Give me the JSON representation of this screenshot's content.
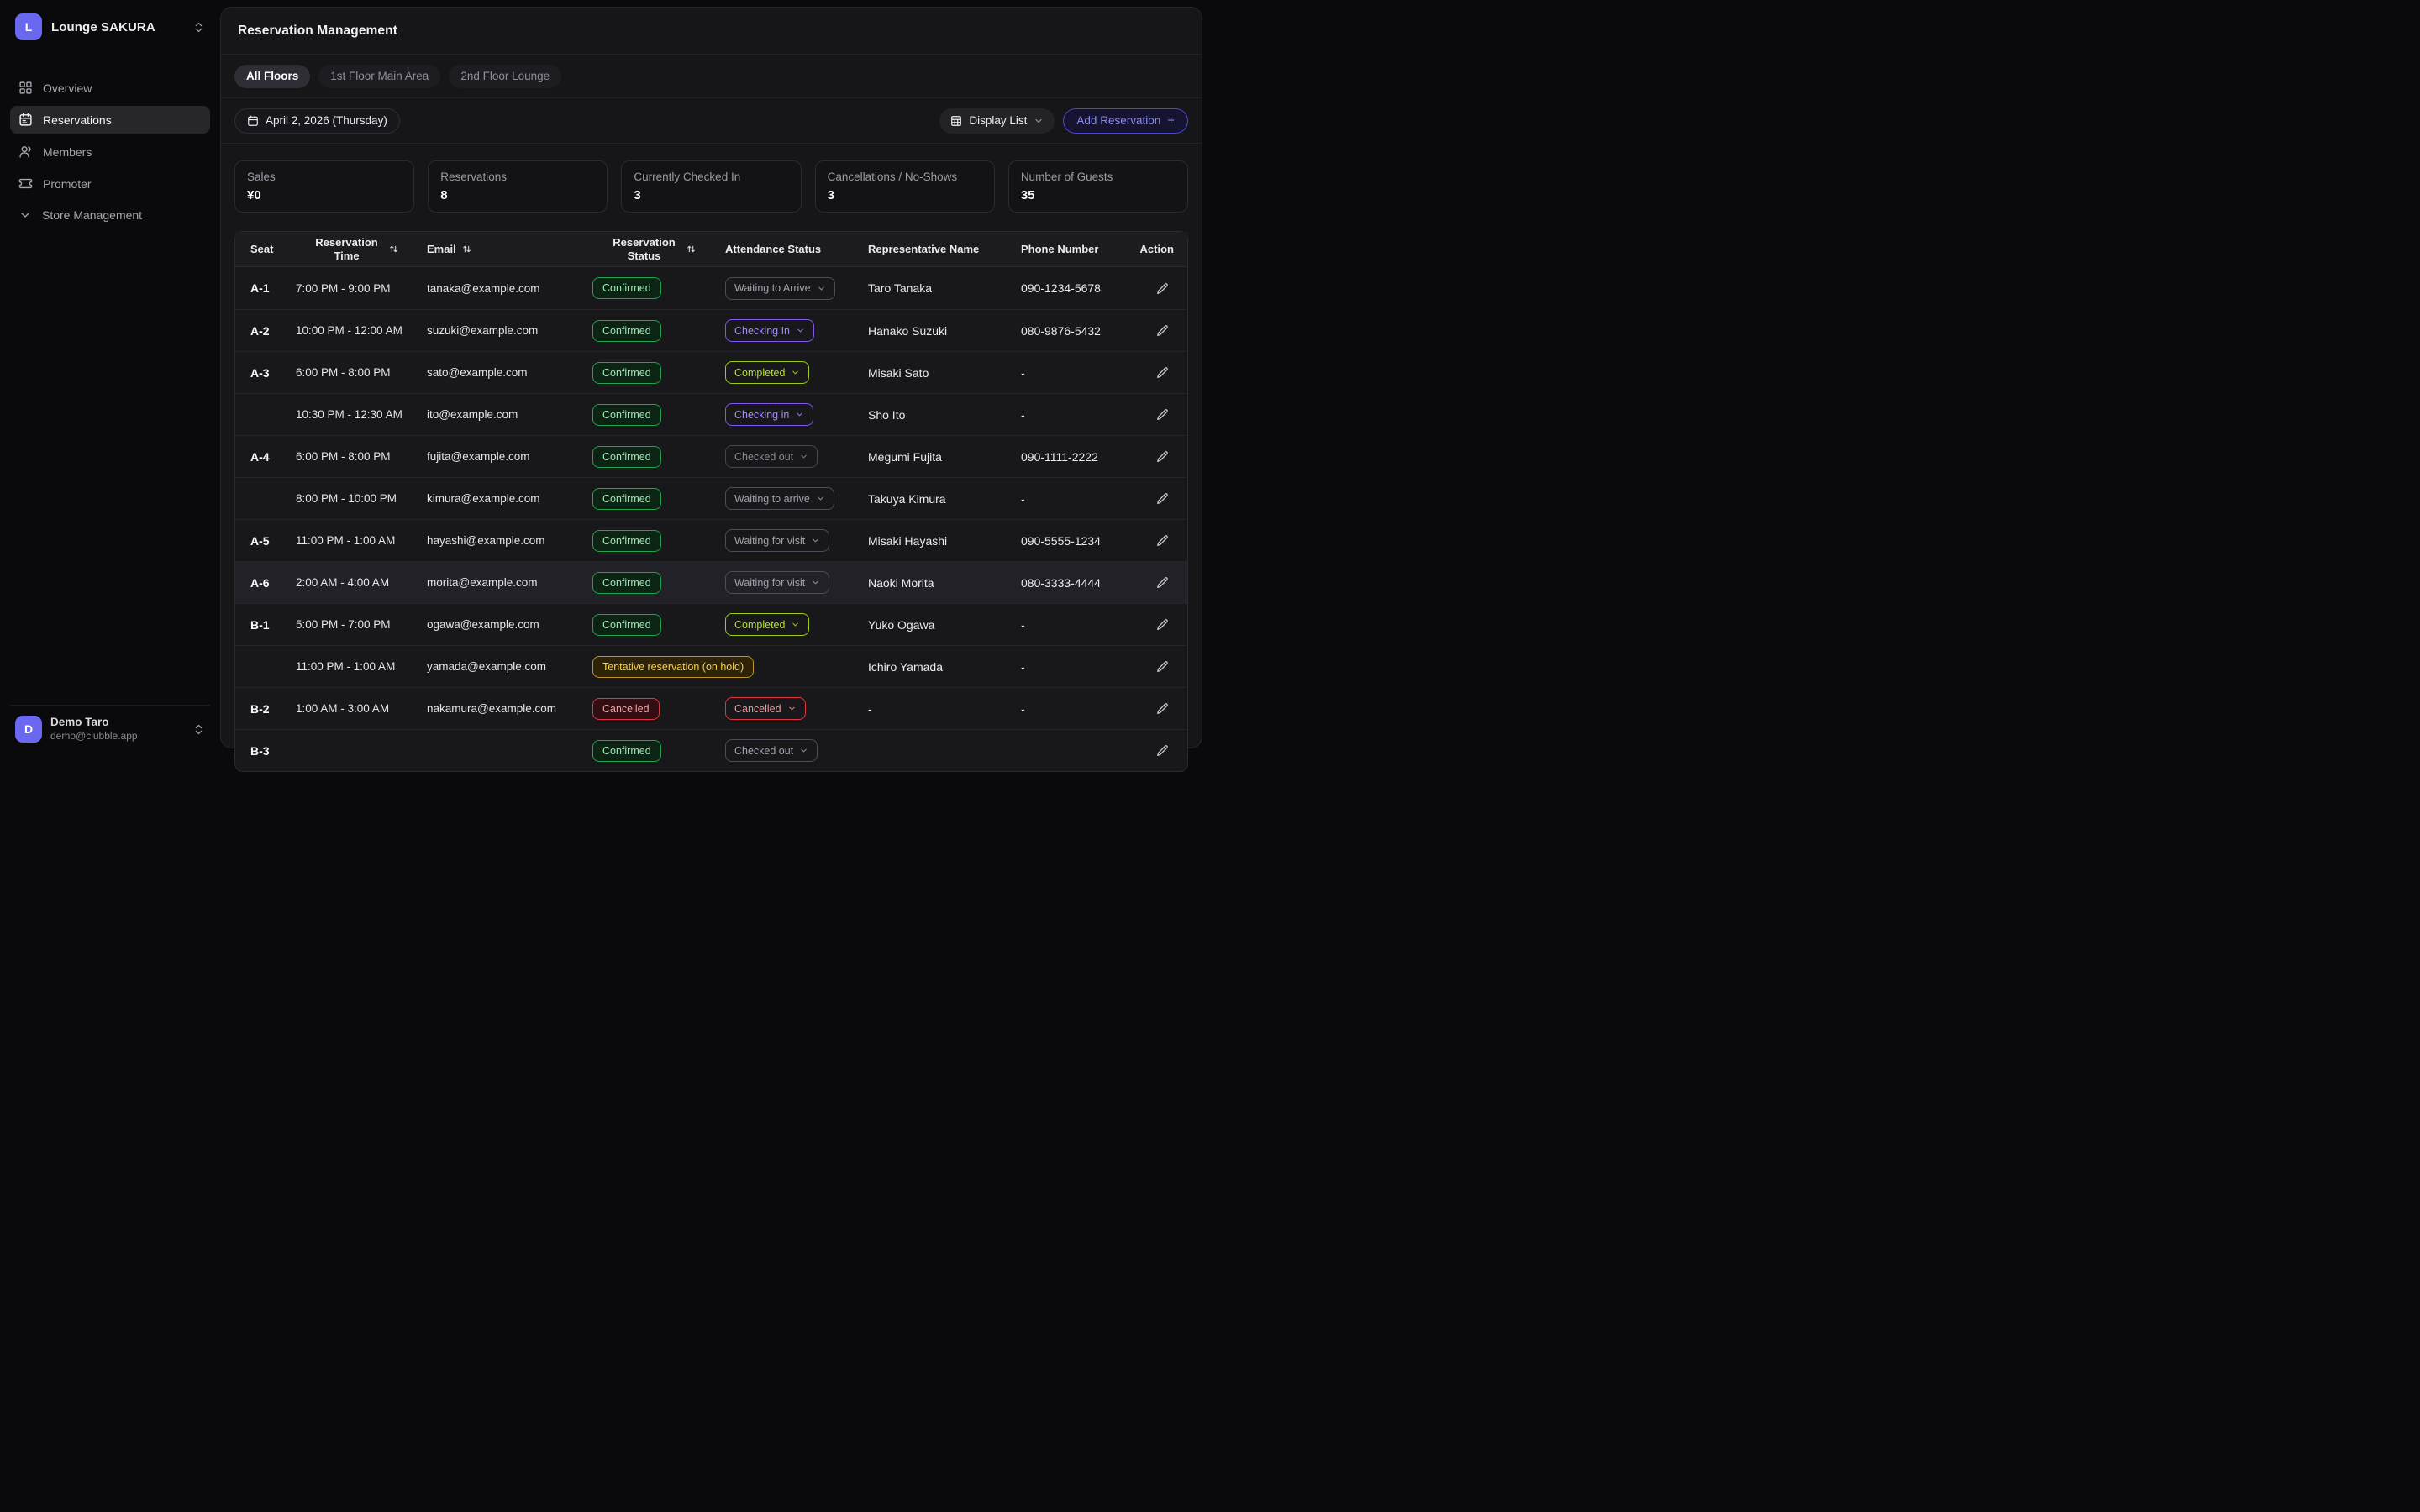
{
  "sidebar": {
    "workspace": {
      "initial": "L",
      "name": "Lounge SAKURA"
    },
    "items": [
      {
        "label": "Overview",
        "icon": "dashboard-icon",
        "active": false
      },
      {
        "label": "Reservations",
        "icon": "calendar-icon",
        "active": true
      },
      {
        "label": "Members",
        "icon": "users-icon",
        "active": false
      },
      {
        "label": "Promoter",
        "icon": "ticket-icon",
        "active": false
      },
      {
        "label": "Store Management",
        "icon": "chevron-down-icon",
        "active": false
      }
    ],
    "user": {
      "initial": "D",
      "name": "Demo Taro",
      "email": "demo@clubble.app"
    }
  },
  "header": {
    "title": "Reservation Management"
  },
  "floor_tabs": [
    {
      "label": "All Floors",
      "active": true
    },
    {
      "label": "1st Floor Main Area",
      "active": false
    },
    {
      "label": "2nd Floor Lounge",
      "active": false
    }
  ],
  "toolbar": {
    "date_label": "April 2, 2026 (Thursday)",
    "display_list_label": "Display List",
    "add_reservation_label": "Add Reservation",
    "add_reservation_plus": "+"
  },
  "stats": [
    {
      "label": "Sales",
      "value": "¥0"
    },
    {
      "label": "Reservations",
      "value": "8"
    },
    {
      "label": "Currently Checked In",
      "value": "3"
    },
    {
      "label": "Cancellations / No-Shows",
      "value": "3"
    },
    {
      "label": "Number of Guests",
      "value": "35"
    }
  ],
  "table": {
    "columns": [
      "Seat",
      "Reservation Time",
      "Email",
      "Reservation Status",
      "Attendance Status",
      "Representative Name",
      "Phone Number",
      "Action"
    ],
    "rows": [
      {
        "seat": "A-1",
        "time": "7:00 PM - 9:00 PM",
        "email": "tanaka@example.com",
        "status": {
          "label": "Confirmed",
          "variant": "confirmed"
        },
        "attendance": {
          "label": "Waiting to Arrive",
          "variant": "gray"
        },
        "name": "Taro Tanaka",
        "phone": "090-1234-5678",
        "highlighted": false
      },
      {
        "seat": "A-2",
        "time": "10:00 PM - 12:00 AM",
        "email": "suzuki@example.com",
        "status": {
          "label": "Confirmed",
          "variant": "confirmed"
        },
        "attendance": {
          "label": "Checking In",
          "variant": "purple"
        },
        "name": "Hanako Suzuki",
        "phone": "080-9876-5432",
        "highlighted": false
      },
      {
        "seat": "A-3",
        "time": "6:00 PM - 8:00 PM",
        "email": "sato@example.com",
        "status": {
          "label": "Confirmed",
          "variant": "confirmed"
        },
        "attendance": {
          "label": "Completed",
          "variant": "lime"
        },
        "name": "Misaki Sato",
        "phone": "-",
        "highlighted": false
      },
      {
        "seat": "",
        "time": "10:30 PM - 12:30 AM",
        "email": "ito@example.com",
        "status": {
          "label": "Confirmed",
          "variant": "confirmed"
        },
        "attendance": {
          "label": "Checking in",
          "variant": "purple"
        },
        "name": "Sho Ito",
        "phone": "-",
        "highlighted": false
      },
      {
        "seat": "A-4",
        "time": "6:00 PM - 8:00 PM",
        "email": "fujita@example.com",
        "status": {
          "label": "Confirmed",
          "variant": "confirmed"
        },
        "attendance": {
          "label": "Checked out",
          "variant": "graydim"
        },
        "name": "Megumi Fujita",
        "phone": "090-1111-2222",
        "highlighted": false
      },
      {
        "seat": "",
        "time": "8:00 PM - 10:00 PM",
        "email": "kimura@example.com",
        "status": {
          "label": "Confirmed",
          "variant": "confirmed"
        },
        "attendance": {
          "label": "Waiting to arrive",
          "variant": "gray"
        },
        "name": "Takuya Kimura",
        "phone": "-",
        "highlighted": false
      },
      {
        "seat": "A-5",
        "time": "11:00 PM - 1:00 AM",
        "email": "hayashi@example.com",
        "status": {
          "label": "Confirmed",
          "variant": "confirmed"
        },
        "attendance": {
          "label": "Waiting for visit",
          "variant": "gray"
        },
        "name": "Misaki Hayashi",
        "phone": "090-5555-1234",
        "highlighted": false
      },
      {
        "seat": "A-6",
        "time": "2:00 AM - 4:00 AM",
        "email": "morita@example.com",
        "status": {
          "label": "Confirmed",
          "variant": "confirmed"
        },
        "attendance": {
          "label": "Waiting for visit",
          "variant": "gray"
        },
        "name": "Naoki Morita",
        "phone": "080-3333-4444",
        "highlighted": true
      },
      {
        "seat": "B-1",
        "time": "5:00 PM - 7:00 PM",
        "email": "ogawa@example.com",
        "status": {
          "label": "Confirmed",
          "variant": "confirmed"
        },
        "attendance": {
          "label": "Completed",
          "variant": "lime"
        },
        "name": "Yuko Ogawa",
        "phone": "-",
        "highlighted": false
      },
      {
        "seat": "",
        "time": "11:00 PM - 1:00 AM",
        "email": "yamada@example.com",
        "status": {
          "label": "Tentative reservation (on hold)",
          "variant": "tentative"
        },
        "attendance": null,
        "name": "Ichiro Yamada",
        "phone": "-",
        "highlighted": false
      },
      {
        "seat": "B-2",
        "time": "1:00 AM - 3:00 AM",
        "email": "nakamura@example.com",
        "status": {
          "label": "Cancelled",
          "variant": "cancelled"
        },
        "attendance": {
          "label": "Cancelled",
          "variant": "red"
        },
        "name": "-",
        "phone": "-",
        "highlighted": false
      },
      {
        "seat": "B-3",
        "time": "",
        "email": "",
        "status": {
          "label": "Confirmed",
          "variant": "confirmed"
        },
        "attendance": {
          "label": "Checked out",
          "variant": "gray"
        },
        "name": "",
        "phone": "",
        "highlighted": false
      }
    ]
  },
  "colors": {
    "accent_indigo": "#6a67f0",
    "confirmed_green": "#22a24c",
    "checking_in_purple": "#8257ee",
    "completed_lime": "#9ecb1d",
    "tentative_amber": "#bd952d",
    "cancelled_red": "#da3940"
  }
}
